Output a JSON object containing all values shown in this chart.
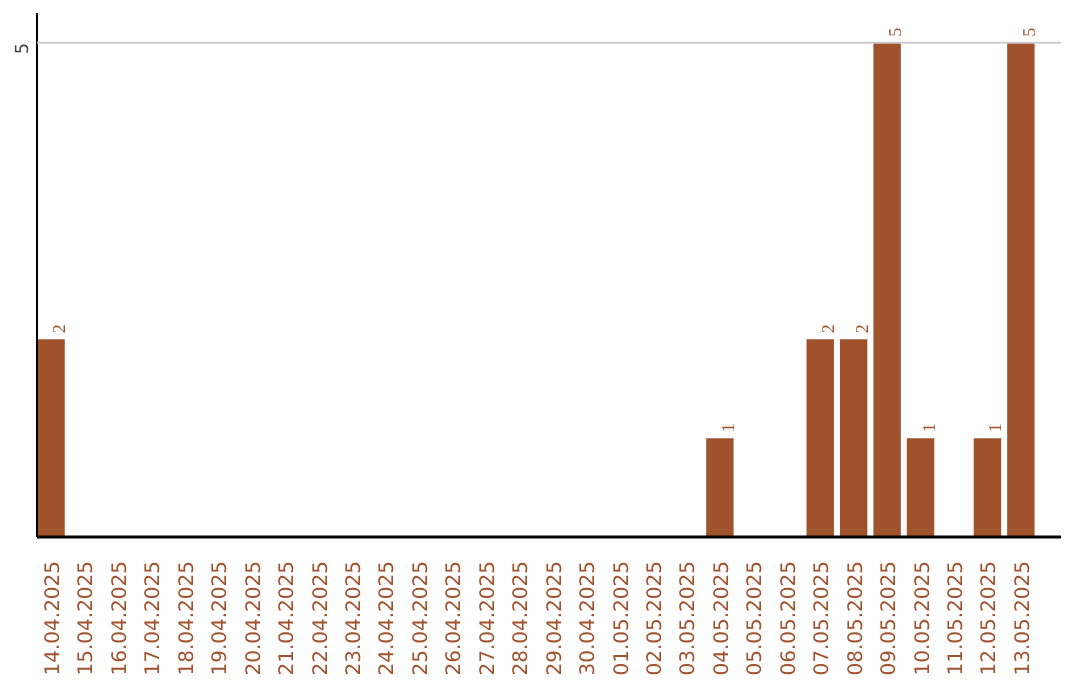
{
  "chart_data": {
    "type": "bar",
    "categories": [
      "14.04.2025",
      "15.04.2025",
      "16.04.2025",
      "17.04.2025",
      "18.04.2025",
      "19.04.2025",
      "20.04.2025",
      "21.04.2025",
      "22.04.2025",
      "23.04.2025",
      "24.04.2025",
      "25.04.2025",
      "26.04.2025",
      "27.04.2025",
      "28.04.2025",
      "29.04.2025",
      "30.04.2025",
      "01.05.2025",
      "02.05.2025",
      "03.05.2025",
      "04.05.2025",
      "05.05.2025",
      "06.05.2025",
      "07.05.2025",
      "08.05.2025",
      "09.05.2025",
      "10.05.2025",
      "11.05.2025",
      "12.05.2025",
      "13.05.2025"
    ],
    "values": [
      2,
      0,
      0,
      0,
      0,
      0,
      0,
      0,
      0,
      0,
      0,
      0,
      0,
      0,
      0,
      0,
      0,
      0,
      0,
      0,
      1,
      0,
      0,
      2,
      2,
      5,
      1,
      0,
      1,
      5
    ],
    "value_labels": [
      "2",
      null,
      null,
      null,
      null,
      null,
      null,
      null,
      null,
      null,
      null,
      null,
      null,
      null,
      null,
      null,
      null,
      null,
      null,
      null,
      "1",
      null,
      null,
      "2",
      "2",
      "5",
      "1",
      null,
      "1",
      "5"
    ],
    "color": "#a0522d",
    "ref_lines": [
      {
        "axis": "y",
        "value": 5,
        "label": "5",
        "color": "#cccccc"
      }
    ]
  }
}
